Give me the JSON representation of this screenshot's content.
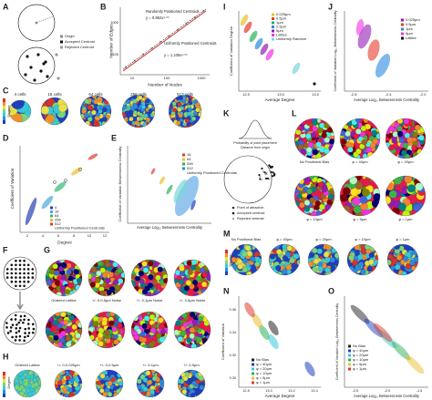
{
  "A": {
    "letter": "A",
    "legend": [
      "Origin",
      "Accepted Centroid",
      "Rejected Centroid"
    ]
  },
  "B": {
    "letter": "B",
    "series": [
      "Randomly Positioned Centroids",
      "Uniformly Positioned Centroids"
    ],
    "fits": [
      "y = 0.952x¹·⁰⁰",
      "y = 1.109x¹·⁰⁰"
    ],
    "x_label": "Number of Nodes",
    "y_label": "Number of Edges",
    "xticks": [
      "10",
      "100",
      "1000"
    ],
    "yticks": [
      "100",
      "1000"
    ]
  },
  "C": {
    "letter": "C",
    "cells": [
      "4 cells",
      "16 cells",
      "64 cells",
      "256 cells",
      "512 cells"
    ],
    "colorbar_label": "Degree"
  },
  "D": {
    "letter": "D",
    "y_label": "Coefficient of Variation",
    "x_label": "Degree",
    "xticks": [
      "2",
      "4",
      "6",
      "8",
      "10",
      "12"
    ],
    "legend": [
      "4",
      "16",
      "64",
      "256",
      "512",
      "Uniformly Positioned Centroids"
    ]
  },
  "E": {
    "letter": "E",
    "y_label": "Coefficient of Variation Betweenness Centrality",
    "x_label": "Average Log₁₀ Betweenness Centrality",
    "legend": [
      "16",
      "64",
      "256",
      "512",
      "Uniformly Positioned Centroids"
    ]
  },
  "F": {
    "letter": "F"
  },
  "G": {
    "letter": "G",
    "labels": [
      "Ordered Lattice",
      "+/- 0-0.5μm Noise",
      "+/- 0-1μm Noise",
      "+/- 0-5μm Noise"
    ]
  },
  "H": {
    "letter": "H",
    "labels": [
      "Ordered Lattice",
      "+/- 0-0.025μm",
      "+/- 0-0.5μm",
      "+/- 0-1μm",
      "+/- 0-5μm"
    ],
    "colorbar_label": "Degree"
  },
  "I": {
    "letter": "I",
    "y_label": "Coefficient of Variation Degree",
    "x_label": "Average Degree",
    "xticks": [
      "12.5",
      "13.0",
      "13.5"
    ],
    "legend": [
      "0.025μm",
      "0.5μm",
      "1μm",
      "2.5μm",
      "5μm",
      "Lattice",
      "Uniformly Random"
    ]
  },
  "J": {
    "letter": "J",
    "y_label": "Coefficient of Variation Log₁₀ Betweenness Centrality",
    "x_label": "Average Log₁₀ Betweenness Centrality",
    "xticks": [
      "-2.8",
      "-2.4",
      "-2.0"
    ],
    "legend": [
      "0.025μm",
      "0.5μm",
      "1μm",
      "5μm",
      "Lattice"
    ]
  },
  "K": {
    "letter": "K",
    "labels": [
      "Probability of point placement",
      "Distance from origin",
      "Point of attraction",
      "Accepted centroid",
      "Rejected centroid"
    ]
  },
  "L": {
    "letter": "L",
    "labels": [
      "No Positional Bias",
      "φ = 40μm",
      "φ = 20μm",
      "φ = 10μm",
      "φ = 5μm",
      "φ = 1μm"
    ]
  },
  "M": {
    "letter": "M",
    "labels": [
      "No Positional Bias",
      "φ = 40μm",
      "φ = 20μm",
      "φ = 10μm",
      "φ = 1μm"
    ],
    "colorbar_label": "Degree"
  },
  "N": {
    "letter": "N",
    "y_label": "Coefficient of Variation",
    "x_label": "Average Degree",
    "yticks": [
      "0.30",
      "0.32",
      "0.34",
      "0.36"
    ],
    "xticks": [
      "12.8",
      "13.0",
      "13.2",
      "13.4"
    ],
    "legend": [
      "No Bias",
      "φ = 40μm",
      "φ = 20μm",
      "φ = 10μm",
      "φ = 5μm",
      "φ = 1μm"
    ]
  },
  "O": {
    "letter": "O",
    "y_label": "Coefficient of Variation Log₁₀ Betweenness Centrality",
    "x_label": "Average Log₁₀ Betweenness Centrality",
    "xticks": [
      "-2.5",
      "-2.0",
      "-1.5"
    ],
    "legend": [
      "No Bias",
      "φ = 40μm",
      "φ = 20μm",
      "φ = 10μm",
      "φ = 5μm",
      "φ = 1μm"
    ]
  }
}
